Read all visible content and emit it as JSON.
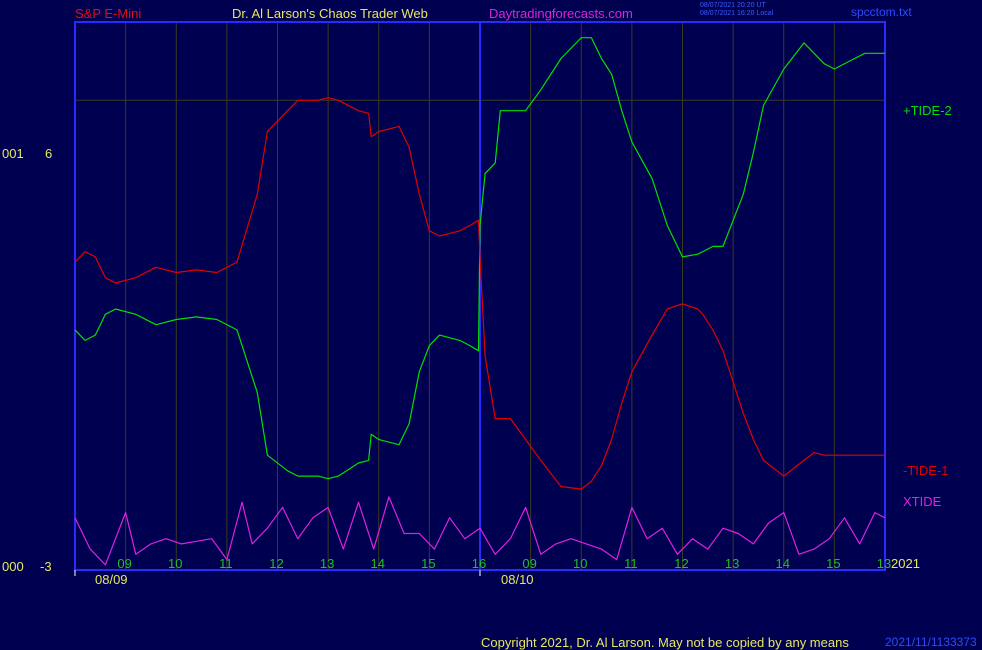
{
  "header": {
    "instrument": "S&P E-Mini",
    "site": "Dr. Al Larson's Chaos Trader Web",
    "url": "Daytradingforecasts.com",
    "timestamp_ut": "08/07/2021 20:20 UT",
    "timestamp_local": "08/07/2021 16:20 Local",
    "file": "spcctom.txt"
  },
  "footer": {
    "copyright": "Copyright 2021, Dr. Al Larson. May not be copied by any means",
    "overlap_code": "2021/11/1133373"
  },
  "colors": {
    "background": "#000050",
    "frame": "#2a2aff",
    "grid": "#3a3a20",
    "tide_plus": "#00e000",
    "tide_minus": "#e00000",
    "xtide": "#e020e0",
    "axis_text": "#e8e860",
    "hour_text": "#20c020"
  },
  "chart_data": {
    "type": "line",
    "title": "S&P E-Mini",
    "y_axis": {
      "top_label": "001",
      "top_value": "6",
      "bottom_label": "000",
      "bottom_value": "-3",
      "ylim": [
        -3,
        7.5
      ]
    },
    "x_axis": {
      "hour_ticks": [
        "09",
        "10",
        "11",
        "12",
        "13",
        "14",
        "15",
        "16",
        "09",
        "10",
        "11",
        "12",
        "13",
        "14",
        "15",
        "13"
      ],
      "dates": [
        "08/09",
        "08/10"
      ],
      "year": "2021",
      "xlim": [
        0,
        16
      ]
    },
    "series": [
      {
        "name": "+TIDE-2",
        "color": "#00e000",
        "x": [
          0,
          0.2,
          0.4,
          0.6,
          0.8,
          1.2,
          1.6,
          2.0,
          2.4,
          2.8,
          3.2,
          3.6,
          3.8,
          4.2,
          4.4,
          4.8,
          5.0,
          5.2,
          5.6,
          5.8,
          5.85,
          6.0,
          6.4,
          6.6,
          6.8,
          7.0,
          7.2,
          7.6,
          7.8,
          7.97,
          8.0,
          8.1,
          8.3,
          8.4,
          8.6,
          8.9,
          9.2,
          9.6,
          10.0,
          10.2,
          10.4,
          10.6,
          10.8,
          11.0,
          11.4,
          11.7,
          12.0,
          12.3,
          12.4,
          12.6,
          12.8,
          13.2,
          13.4,
          13.6,
          14.0,
          14.4,
          14.6,
          14.8,
          15.0,
          15.4,
          15.6,
          15.8,
          16.0
        ],
        "values": [
          1.6,
          1.4,
          1.5,
          1.9,
          2.0,
          1.9,
          1.7,
          1.8,
          1.85,
          1.8,
          1.6,
          0.4,
          -0.8,
          -1.1,
          -1.2,
          -1.2,
          -1.25,
          -1.2,
          -0.95,
          -0.9,
          -0.4,
          -0.5,
          -0.6,
          -0.2,
          0.8,
          1.3,
          1.5,
          1.4,
          1.3,
          1.2,
          3.6,
          4.6,
          4.8,
          5.8,
          5.8,
          5.8,
          6.2,
          6.8,
          7.2,
          7.2,
          6.8,
          6.5,
          5.8,
          5.2,
          4.5,
          3.6,
          3.0,
          3.05,
          3.1,
          3.2,
          3.2,
          4.2,
          5.0,
          5.9,
          6.6,
          7.1,
          6.9,
          6.7,
          6.6,
          6.8,
          6.9,
          6.9,
          6.9
        ],
        "label": "+TIDE-2"
      },
      {
        "name": "-TIDE-1",
        "color": "#e00000",
        "x": [
          0,
          0.2,
          0.4,
          0.6,
          0.8,
          1.2,
          1.6,
          2.0,
          2.4,
          2.8,
          3.2,
          3.6,
          3.8,
          4.2,
          4.4,
          4.8,
          5.0,
          5.2,
          5.6,
          5.8,
          5.85,
          6.0,
          6.4,
          6.6,
          6.8,
          7.0,
          7.2,
          7.6,
          7.8,
          7.97,
          8.0,
          8.1,
          8.3,
          8.4,
          8.6,
          8.9,
          9.2,
          9.6,
          10.0,
          10.2,
          10.4,
          10.6,
          10.8,
          11.0,
          11.4,
          11.7,
          12.0,
          12.3,
          12.4,
          12.6,
          12.8,
          13.2,
          13.4,
          13.6,
          14.0,
          14.4,
          14.6,
          14.8,
          15.0,
          15.4,
          15.6,
          15.8,
          16.0
        ],
        "values": [
          2.9,
          3.1,
          3.0,
          2.6,
          2.5,
          2.6,
          2.8,
          2.7,
          2.75,
          2.7,
          2.9,
          4.2,
          5.4,
          5.8,
          6.0,
          6.0,
          6.05,
          6.0,
          5.8,
          5.75,
          5.3,
          5.4,
          5.5,
          5.1,
          4.2,
          3.5,
          3.4,
          3.5,
          3.6,
          3.7,
          3.0,
          1.1,
          -0.1,
          -0.1,
          -0.1,
          -0.5,
          -0.9,
          -1.4,
          -1.45,
          -1.3,
          -1.0,
          -0.5,
          0.2,
          0.8,
          1.5,
          2.0,
          2.1,
          2.0,
          1.9,
          1.6,
          1.2,
          0.0,
          -0.5,
          -0.9,
          -1.2,
          -0.9,
          -0.75,
          -0.8,
          -0.8,
          -0.8,
          -0.8,
          -0.8,
          -0.8
        ],
        "label": "-TIDE-1"
      },
      {
        "name": "XTIDE",
        "color": "#e020e0",
        "x": [
          0,
          0.3,
          0.6,
          1.0,
          1.2,
          1.5,
          1.8,
          2.1,
          2.4,
          2.7,
          3.0,
          3.3,
          3.5,
          3.8,
          4.1,
          4.4,
          4.7,
          5.0,
          5.3,
          5.6,
          5.9,
          6.2,
          6.5,
          6.8,
          7.1,
          7.4,
          7.7,
          8.0,
          8.3,
          8.6,
          8.9,
          9.2,
          9.5,
          9.8,
          10.1,
          10.4,
          10.7,
          11.0,
          11.3,
          11.6,
          11.9,
          12.2,
          12.5,
          12.8,
          13.1,
          13.4,
          13.7,
          14.0,
          14.3,
          14.6,
          14.9,
          15.2,
          15.5,
          15.8,
          16.0
        ],
        "values": [
          -2.0,
          -2.6,
          -2.9,
          -1.9,
          -2.7,
          -2.5,
          -2.4,
          -2.5,
          -2.45,
          -2.4,
          -2.8,
          -1.7,
          -2.5,
          -2.2,
          -1.8,
          -2.4,
          -2.0,
          -1.8,
          -2.6,
          -1.7,
          -2.6,
          -1.6,
          -2.3,
          -2.3,
          -2.6,
          -2.0,
          -2.4,
          -2.2,
          -2.7,
          -2.4,
          -1.8,
          -2.7,
          -2.5,
          -2.4,
          -2.5,
          -2.6,
          -2.8,
          -1.8,
          -2.4,
          -2.2,
          -2.7,
          -2.4,
          -2.6,
          -2.2,
          -2.3,
          -2.5,
          -2.1,
          -1.9,
          -2.7,
          -2.6,
          -2.4,
          -2.0,
          -2.5,
          -1.9,
          -2.0
        ],
        "label": "XTIDE"
      }
    ],
    "grid": true,
    "legend": "right"
  }
}
